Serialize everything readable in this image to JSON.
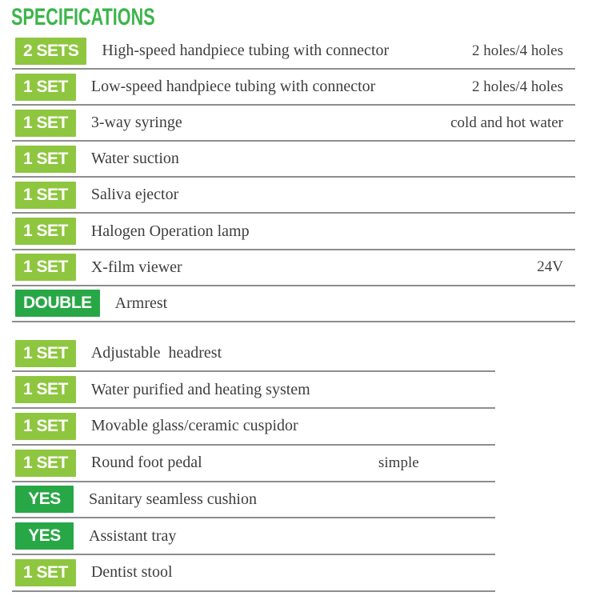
{
  "page": {
    "title": "SPECIFICATIONS"
  },
  "colors": {
    "title_green": "#3cb54a",
    "badge_light_green": "#8ec63f",
    "badge_dark_green": "#28a746",
    "divider_gray": "#8e8e8e",
    "text_color": "#3e3e3e"
  },
  "sections": [
    {
      "name": "spec-section-1",
      "rows": [
        {
          "badge": "2 SETS",
          "badge_style": "light",
          "item": "High-speed handpiece tubing with connector",
          "note": "2 holes/4 holes",
          "note_pos": "right"
        },
        {
          "badge": "1 SET",
          "badge_style": "light",
          "item": "Low-speed handpiece tubing with connector",
          "note": "2 holes/4 holes",
          "note_pos": "right"
        },
        {
          "badge": "1 SET",
          "badge_style": "light",
          "item": "3-way syringe",
          "note": "cold and hot water",
          "note_pos": "right"
        },
        {
          "badge": "1 SET",
          "badge_style": "light",
          "item": "Water suction",
          "note": "",
          "note_pos": ""
        },
        {
          "badge": "1 SET",
          "badge_style": "light",
          "item": "Saliva ejector",
          "note": "",
          "note_pos": ""
        },
        {
          "badge": "1 SET",
          "badge_style": "light",
          "item": "Halogen Operation lamp",
          "note": "",
          "note_pos": ""
        },
        {
          "badge": "1 SET",
          "badge_style": "light",
          "item": "X-film viewer",
          "note": "24V",
          "note_pos": "right"
        },
        {
          "badge": "DOUBLE",
          "badge_style": "dark",
          "item": "Armrest",
          "note": "",
          "note_pos": ""
        }
      ]
    },
    {
      "name": "spec-section-2",
      "rows": [
        {
          "badge": "1 SET",
          "badge_style": "light",
          "item": "Adjustable  headrest",
          "note": "",
          "note_pos": ""
        },
        {
          "badge": "1 SET",
          "badge_style": "light",
          "item": "Water purified and heating system",
          "note": "",
          "note_pos": ""
        },
        {
          "badge": "1 SET",
          "badge_style": "light",
          "item": "Movable glass/ceramic cuspidor",
          "note": "",
          "note_pos": ""
        },
        {
          "badge": "1 SET",
          "badge_style": "light",
          "item": "Round foot pedal",
          "note": "simple",
          "note_pos": "middle"
        },
        {
          "badge": "YES",
          "badge_style": "dark",
          "item": "Sanitary seamless cushion",
          "note": "",
          "note_pos": ""
        },
        {
          "badge": "YES",
          "badge_style": "dark",
          "item": "Assistant tray",
          "note": "",
          "note_pos": ""
        },
        {
          "badge": "1 SET",
          "badge_style": "light",
          "item": "Dentist stool",
          "note": "",
          "note_pos": ""
        }
      ]
    }
  ]
}
